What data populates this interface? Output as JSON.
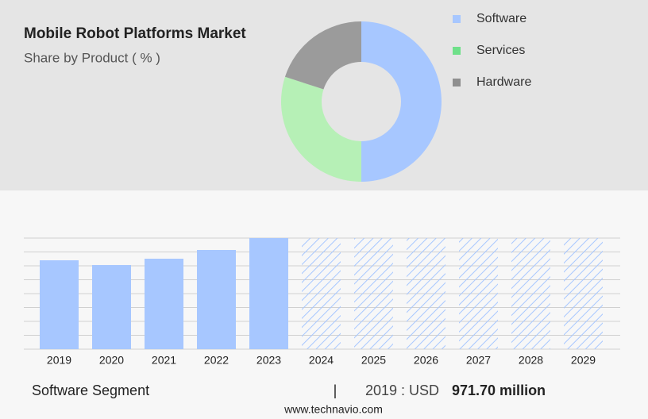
{
  "header": {
    "title": "Mobile Robot Platforms Market",
    "subtitle": "Share by Product ( % )"
  },
  "chart_data": [
    {
      "type": "pie",
      "categories": [
        "Software",
        "Services",
        "Hardware"
      ],
      "values": [
        50,
        30,
        20
      ],
      "colors": [
        "#a7c7ff",
        "#b6f0b6",
        "#9b9b9b"
      ],
      "legend_colors": [
        "#a7c7ff",
        "#6fe08a",
        "#8f8f8f"
      ]
    },
    {
      "type": "bar",
      "categories": [
        "2019",
        "2020",
        "2021",
        "2022",
        "2023",
        "2024",
        "2025",
        "2026",
        "2027",
        "2028",
        "2029"
      ],
      "values": [
        971.7,
        919.7,
        989,
        1084.5,
        1214.6,
        null,
        null,
        null,
        null,
        null,
        null
      ],
      "color": "#a7c7ff",
      "ylim": [
        0,
        1214.6
      ]
    }
  ],
  "footer": {
    "segment": "Software Segment",
    "separator": "|",
    "year_label": "2019 : USD",
    "value_label": "971.70 million",
    "website": "www.technavio.com"
  }
}
